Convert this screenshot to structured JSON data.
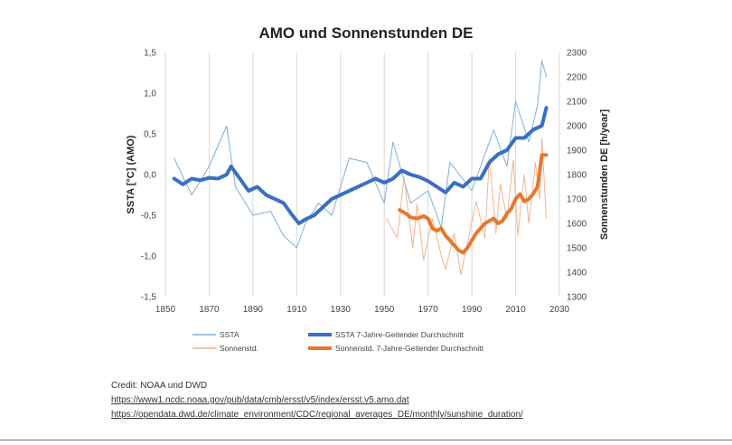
{
  "chart_data": {
    "type": "line",
    "title": "AMO und Sonnenstunden DE",
    "ylabel_left": "SSTA [°C]   (AMO)",
    "ylabel_right": "Sonnenstunden DE   [h/year]",
    "xlabel": "",
    "xlim": [
      1850,
      2030
    ],
    "ylim_left": [
      -1.5,
      1.5
    ],
    "ylim_right": [
      1300,
      2300
    ],
    "x_ticks": [
      "1850",
      "1870",
      "1890",
      "1910",
      "1930",
      "1950",
      "1970",
      "1990",
      "2010",
      "2030"
    ],
    "y_left_ticks": [
      "1,5",
      "1,0",
      "0,5",
      "0,0",
      "-0,5",
      "-1,0",
      "-1,5"
    ],
    "y_right_ticks": [
      "2300",
      "2200",
      "2100",
      "2000",
      "1900",
      "1800",
      "1700",
      "1600",
      "1500",
      "1400",
      "1300"
    ],
    "grid": "vertical",
    "legend_placement": "bottom",
    "colors": {
      "ssta": "#7fb0d8",
      "ssta_smooth": "#3a6fc4",
      "sun": "#f2b48c",
      "sun_smooth": "#e8772e"
    },
    "series": [
      {
        "name": "SSTA 7-Jahre-Geitender Durchschnitt",
        "axis": "left",
        "x": [
          1854,
          1858,
          1862,
          1866,
          1870,
          1874,
          1878,
          1880,
          1884,
          1888,
          1892,
          1896,
          1900,
          1904,
          1908,
          1911,
          1914,
          1918,
          1922,
          1926,
          1930,
          1934,
          1938,
          1942,
          1946,
          1950,
          1954,
          1958,
          1962,
          1966,
          1970,
          1974,
          1978,
          1982,
          1986,
          1990,
          1994,
          1998,
          2002,
          2006,
          2010,
          2014,
          2018,
          2022,
          2024
        ],
        "y": [
          -0.05,
          -0.12,
          -0.05,
          -0.07,
          -0.04,
          -0.05,
          0.0,
          0.1,
          -0.05,
          -0.2,
          -0.15,
          -0.25,
          -0.3,
          -0.35,
          -0.5,
          -0.6,
          -0.55,
          -0.5,
          -0.4,
          -0.3,
          -0.25,
          -0.2,
          -0.15,
          -0.1,
          -0.05,
          -0.1,
          -0.05,
          0.05,
          0.0,
          -0.03,
          -0.08,
          -0.15,
          -0.22,
          -0.1,
          -0.15,
          -0.05,
          -0.05,
          0.15,
          0.25,
          0.3,
          0.45,
          0.45,
          0.55,
          0.6,
          0.82
        ]
      },
      {
        "name": "Sonnenstd.  7-Jahre-Geitender Durchschnitt",
        "axis": "right",
        "x": [
          1957,
          1960,
          1962,
          1965,
          1968,
          1970,
          1972,
          1974,
          1976,
          1978,
          1980,
          1982,
          1984,
          1986,
          1988,
          1990,
          1992,
          1994,
          1996,
          1998,
          2000,
          2002,
          2004,
          2006,
          2008,
          2010,
          2012,
          2014,
          2016,
          2018,
          2020,
          2022,
          2024
        ],
        "y": [
          1655,
          1640,
          1625,
          1620,
          1630,
          1620,
          1580,
          1570,
          1580,
          1550,
          1530,
          1510,
          1490,
          1480,
          1500,
          1530,
          1560,
          1580,
          1600,
          1610,
          1620,
          1600,
          1610,
          1640,
          1660,
          1700,
          1720,
          1690,
          1700,
          1720,
          1750,
          1880,
          1880
        ]
      },
      {
        "name": "SSTA",
        "axis": "left",
        "x": [
          1854,
          1862,
          1870,
          1878,
          1882,
          1890,
          1898,
          1904,
          1910,
          1914,
          1920,
          1926,
          1934,
          1942,
          1950,
          1954,
          1962,
          1970,
          1976,
          1980,
          1990,
          2000,
          2006,
          2010,
          2016,
          2020,
          2022,
          2024
        ],
        "y": [
          0.2,
          -0.25,
          0.1,
          0.6,
          -0.15,
          -0.5,
          -0.45,
          -0.75,
          -0.9,
          -0.6,
          -0.35,
          -0.5,
          0.2,
          0.15,
          -0.35,
          0.4,
          -0.35,
          -0.2,
          -0.65,
          0.15,
          -0.2,
          0.55,
          0.1,
          0.9,
          0.4,
          0.85,
          1.4,
          1.2
        ]
      },
      {
        "name": "Sonnenstd.",
        "axis": "right",
        "x": [
          1951,
          1956,
          1959,
          1963,
          1965,
          1968,
          1972,
          1976,
          1978,
          1982,
          1985,
          1988,
          1992,
          1996,
          1998,
          2001,
          2003,
          2006,
          2009,
          2011,
          2014,
          2016,
          2019,
          2021,
          2022,
          2024
        ],
        "y": [
          1620,
          1540,
          1790,
          1500,
          1680,
          1450,
          1620,
          1470,
          1410,
          1560,
          1390,
          1520,
          1690,
          1540,
          1870,
          1560,
          1760,
          1620,
          1860,
          1550,
          1800,
          1600,
          1850,
          1700,
          1950,
          1620
        ]
      }
    ]
  },
  "legend": [
    {
      "label": "SSTA",
      "color": "#7fb0d8"
    },
    {
      "label": "SSTA 7-Jahre-Geitender Durchschnitt",
      "color": "#3a6fc4"
    },
    {
      "label": "Sonnenstd.",
      "color": "#f2b48c"
    },
    {
      "label": "Sonnenstd.  7-Jahre-Geitender Durchschnitt",
      "color": "#e8772e"
    }
  ],
  "credits": {
    "line1": "Credit:  NOAA und DWD",
    "link1": "https://www1.ncdc.noaa.gov/pub/data/cmb/ersst/v5/index/ersst.v5.amo.dat",
    "link2": "https://opendata.dwd.de/climate_environment/CDC/regional_averages_DE/monthly/sunshine_duration/"
  }
}
